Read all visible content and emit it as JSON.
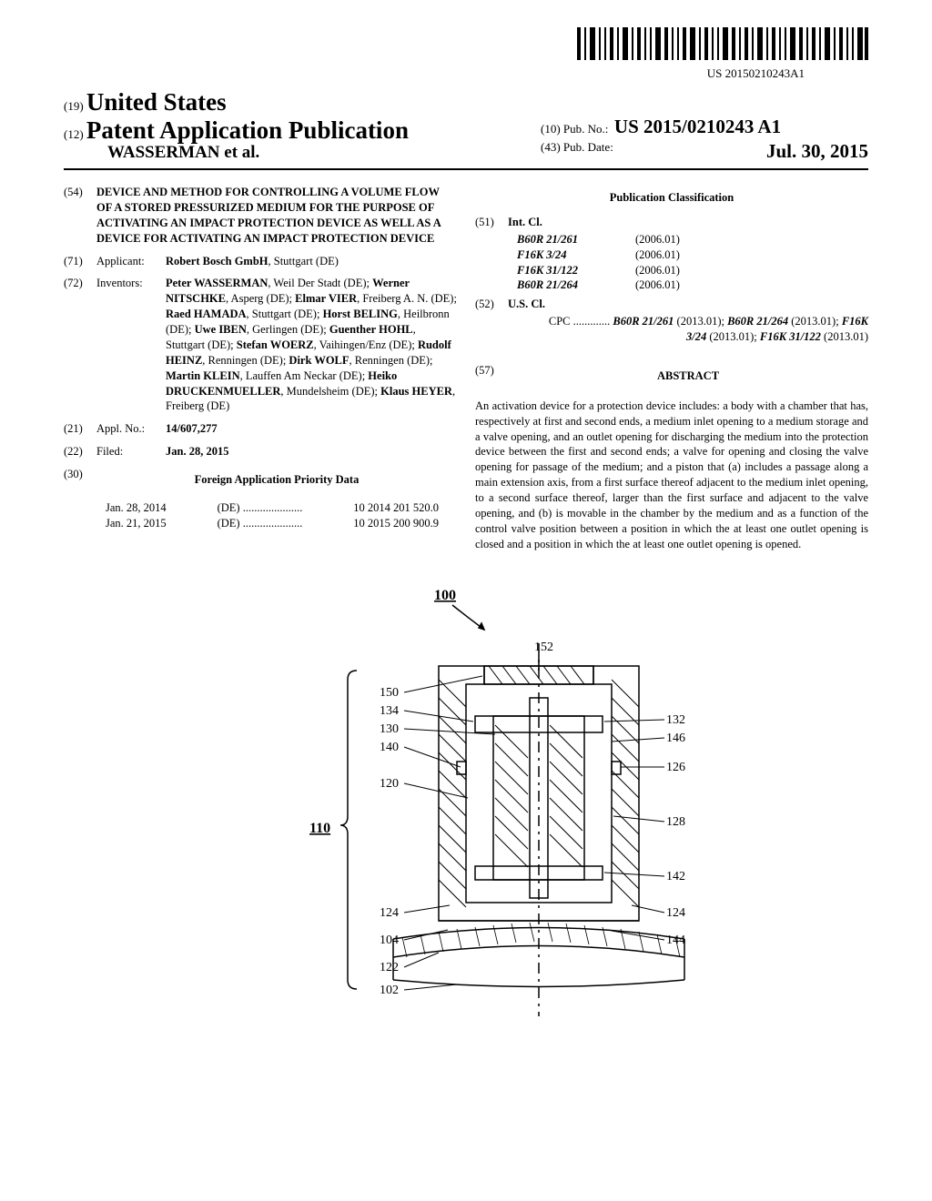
{
  "barcode_number": "US 20150210243A1",
  "header": {
    "country_code": "(19)",
    "country": "United States",
    "kind_code": "(12)",
    "kind": "Patent Application Publication",
    "applicant_surname": "WASSERMAN et al.",
    "pubno_code": "(10)",
    "pubno_label": "Pub. No.:",
    "pubno": "US 2015/0210243 A1",
    "pubdate_code": "(43)",
    "pubdate_label": "Pub. Date:",
    "pubdate": "Jul. 30, 2015"
  },
  "field54": {
    "num": "(54)",
    "title": "DEVICE AND METHOD FOR CONTROLLING A VOLUME FLOW OF A STORED PRESSURIZED MEDIUM FOR THE PURPOSE OF ACTIVATING AN IMPACT PROTECTION DEVICE AS WELL AS A DEVICE FOR ACTIVATING AN IMPACT PROTECTION DEVICE"
  },
  "field71": {
    "num": "(71)",
    "label": "Applicant:",
    "name": "Robert Bosch GmbH",
    "loc": ", Stuttgart (DE)"
  },
  "field72": {
    "num": "(72)",
    "label": "Inventors:",
    "inventors": [
      {
        "name": "Peter WASSERMAN",
        "loc": ", Weil Der Stadt (DE); "
      },
      {
        "name": "Werner NITSCHKE",
        "loc": ", Asperg (DE); "
      },
      {
        "name": "Elmar VIER",
        "loc": ", Freiberg A. N. (DE); "
      },
      {
        "name": "Raed HAMADA",
        "loc": ", Stuttgart (DE); "
      },
      {
        "name": "Horst BELING",
        "loc": ", Heilbronn (DE); "
      },
      {
        "name": "Uwe IBEN",
        "loc": ", Gerlingen (DE); "
      },
      {
        "name": "Guenther HOHL",
        "loc": ", Stuttgart (DE); "
      },
      {
        "name": "Stefan WOERZ",
        "loc": ", Vaihingen/Enz (DE); "
      },
      {
        "name": "Rudolf HEINZ",
        "loc": ", Renningen (DE); "
      },
      {
        "name": "Dirk WOLF",
        "loc": ", Renningen (DE); "
      },
      {
        "name": "Martin KLEIN",
        "loc": ", Lauffen Am Neckar (DE); "
      },
      {
        "name": "Heiko DRUCKENMUELLER",
        "loc": ", Mundelsheim (DE); "
      },
      {
        "name": "Klaus HEYER",
        "loc": ", Freiberg (DE)"
      }
    ]
  },
  "field21": {
    "num": "(21)",
    "label": "Appl. No.:",
    "value": "14/607,277"
  },
  "field22": {
    "num": "(22)",
    "label": "Filed:",
    "value": "Jan. 28, 2015"
  },
  "field30": {
    "num": "(30)",
    "heading": "Foreign Application Priority Data",
    "rows": [
      {
        "date": "Jan. 28, 2014",
        "cc": "(DE)",
        "dots": ".....................",
        "num": "10 2014 201 520.0"
      },
      {
        "date": "Jan. 21, 2015",
        "cc": "(DE)",
        "dots": ".....................",
        "num": "10 2015 200 900.9"
      }
    ]
  },
  "pubclass_heading": "Publication Classification",
  "field51": {
    "num": "(51)",
    "label": "Int. Cl.",
    "rows": [
      {
        "cls": "B60R 21/261",
        "date": "(2006.01)"
      },
      {
        "cls": "F16K 3/24",
        "date": "(2006.01)"
      },
      {
        "cls": "F16K 31/122",
        "date": "(2006.01)"
      },
      {
        "cls": "B60R 21/264",
        "date": "(2006.01)"
      }
    ]
  },
  "field52": {
    "num": "(52)",
    "label": "U.S. Cl.",
    "cpc_label": "CPC",
    "cpc_dots": ".............",
    "cpc_parts": [
      {
        "cls": "B60R 21/261",
        "date": " (2013.01); "
      },
      {
        "cls": "B60R 21/264",
        "date": " (2013.01); "
      },
      {
        "cls": "F16K 3/24",
        "date": " (2013.01); "
      },
      {
        "cls": "F16K 31/122",
        "date": " (2013.01)"
      }
    ]
  },
  "field57": {
    "num": "(57)",
    "heading": "ABSTRACT",
    "text": "An activation device for a protection device includes: a body with a chamber that has, respectively at first and second ends, a medium inlet opening to a medium storage and a valve opening, and an outlet opening for discharging the medium into the protection device between the first and second ends; a valve for opening and closing the valve opening for passage of the medium; and a piston that (a) includes a passage along a main extension axis, from a first surface thereof adjacent to the medium inlet opening, to a second surface thereof, larger than the first surface and adjacent to the valve opening, and (b) is movable in the chamber by the medium and as a function of the control valve position between a position in which the at least one outlet opening is closed and a position in which the at least one outlet opening is opened."
  },
  "figure": {
    "main_label": "100",
    "brace_label": "110",
    "top_label": "152",
    "left_labels": [
      "150",
      "134",
      "130",
      "140",
      "120",
      "124",
      "104",
      "122",
      "102"
    ],
    "right_labels": [
      "132",
      "146",
      "126",
      "128",
      "142",
      "124",
      "144"
    ],
    "colors": {
      "line": "#000000",
      "bg": "#ffffff"
    }
  }
}
